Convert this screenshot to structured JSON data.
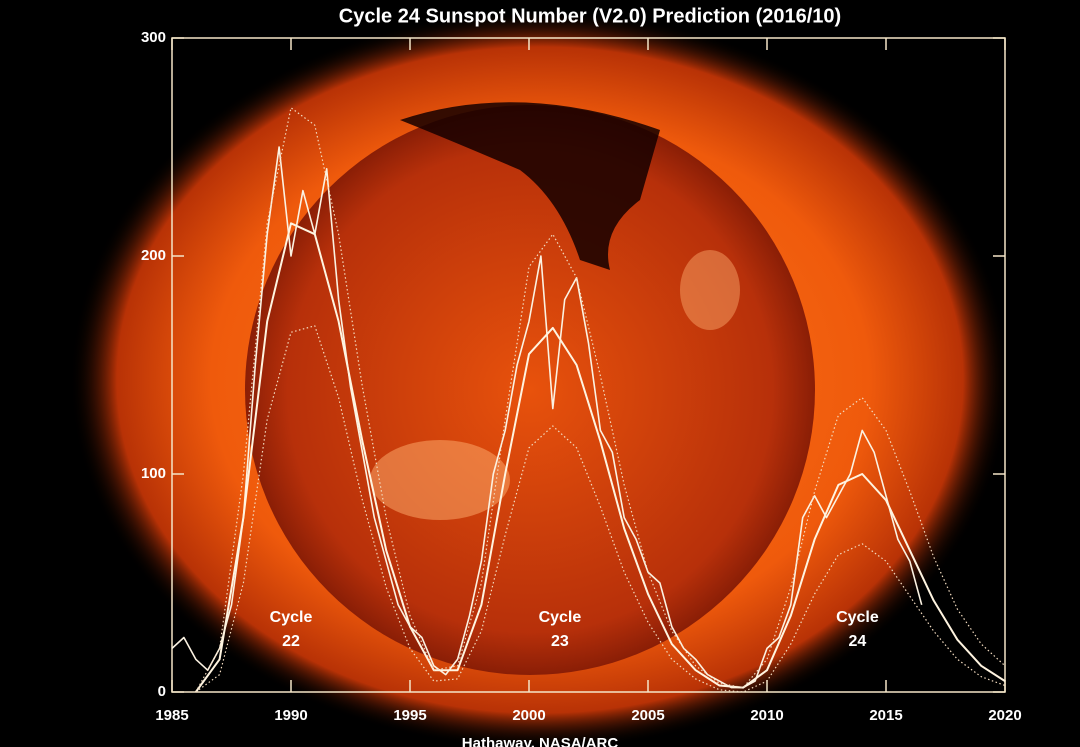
{
  "chart_data": {
    "type": "line",
    "title": "Cycle 24 Sunspot Number (V2.0) Prediction (2016/10)",
    "credit": "Hathaway, NASA/ARC",
    "annotations": [
      {
        "x": 1990,
        "lines": [
          "Cycle",
          "22"
        ]
      },
      {
        "x": 2001.3,
        "lines": [
          "Cycle",
          "23"
        ]
      },
      {
        "x": 2013.8,
        "lines": [
          "Cycle",
          "24"
        ]
      }
    ],
    "xlim": [
      1985,
      2020
    ],
    "xticks": [
      1985,
      1990,
      1995,
      2000,
      2005,
      2010,
      2015,
      2020
    ],
    "ylim": [
      0,
      300
    ],
    "yticks": [
      0,
      100,
      200,
      300
    ],
    "series": [
      {
        "color": "#fbf2e2",
        "style": "solid",
        "width": 1.6,
        "x": [
          1985,
          1985.5,
          1986,
          1986.5,
          1987,
          1987.5,
          1988,
          1988.5,
          1989,
          1989.5,
          1990,
          1990.5,
          1991,
          1991.5,
          1992,
          1992.5,
          1993,
          1993.5,
          1994,
          1994.5,
          1995,
          1995.5,
          1996,
          1996.5,
          1997,
          1997.5,
          1998,
          1998.5,
          1999,
          1999.5,
          2000,
          2000.5,
          2001,
          2001.5,
          2002,
          2002.5,
          2003,
          2003.5,
          2004,
          2004.5,
          2005,
          2005.5,
          2006,
          2006.5,
          2007,
          2007.5,
          2008,
          2008.5,
          2009,
          2009.5,
          2010,
          2010.5,
          2011,
          2011.5,
          2012,
          2012.5,
          2013,
          2013.5,
          2014,
          2014.5,
          2015,
          2015.5,
          2016,
          2016.5
        ],
        "values": [
          20,
          25,
          15,
          10,
          20,
          40,
          80,
          150,
          210,
          250,
          200,
          230,
          210,
          240,
          180,
          140,
          110,
          80,
          60,
          40,
          30,
          25,
          12,
          8,
          15,
          35,
          60,
          100,
          120,
          150,
          170,
          200,
          130,
          180,
          190,
          160,
          120,
          110,
          80,
          70,
          55,
          50,
          30,
          20,
          15,
          8,
          5,
          2,
          2,
          5,
          20,
          25,
          40,
          80,
          90,
          80,
          90,
          100,
          120,
          110,
          90,
          70,
          60,
          40
        ]
      },
      {
        "color": "#fff4e0",
        "style": "solid",
        "width": 2,
        "x": [
          1986,
          1987,
          1988,
          1989,
          1990,
          1991,
          1992,
          1993,
          1994,
          1995,
          1996,
          1997,
          1998,
          1999,
          2000,
          2001,
          2002,
          2003,
          2004,
          2005,
          2006,
          2007,
          2008,
          2009,
          2010,
          2011,
          2012,
          2013,
          2014,
          2015,
          2016,
          2017,
          2018,
          2019,
          2020
        ],
        "values": [
          0,
          15,
          80,
          170,
          215,
          210,
          170,
          115,
          65,
          30,
          10,
          10,
          40,
          100,
          155,
          167,
          150,
          115,
          75,
          45,
          22,
          10,
          3,
          2,
          10,
          35,
          70,
          95,
          100,
          88,
          65,
          42,
          24,
          12,
          5
        ]
      },
      {
        "color": "#f3dcc0",
        "style": "dotted",
        "width": 1.2,
        "x": [
          1986,
          1987,
          1988,
          1989,
          1990,
          1991,
          1992,
          1993,
          1994,
          1995,
          1996,
          1997,
          1998,
          1999,
          2000,
          2001,
          2002,
          2003,
          2004,
          2005,
          2006,
          2007,
          2008,
          2009,
          2010,
          2011,
          2012,
          2013,
          2014,
          2015,
          2016,
          2017,
          2018,
          2019,
          2020
        ],
        "values": [
          0,
          20,
          100,
          215,
          268,
          260,
          210,
          140,
          80,
          35,
          10,
          12,
          50,
          125,
          195,
          210,
          190,
          145,
          95,
          55,
          28,
          12,
          4,
          2,
          15,
          48,
          92,
          127,
          135,
          120,
          92,
          62,
          38,
          22,
          12
        ]
      },
      {
        "color": "#f3dcc0",
        "style": "dotted",
        "width": 1.2,
        "x": [
          1986,
          1987,
          1988,
          1989,
          1990,
          1991,
          1992,
          1993,
          1994,
          1995,
          1996,
          1997,
          1998,
          1999,
          2000,
          2001,
          2002,
          2003,
          2004,
          2005,
          2006,
          2007,
          2008,
          2009,
          2010,
          2011,
          2012,
          2013,
          2014,
          2015,
          2016,
          2017,
          2018,
          2019,
          2020
        ],
        "values": [
          0,
          8,
          50,
          125,
          165,
          168,
          135,
          88,
          48,
          20,
          5,
          6,
          28,
          72,
          112,
          122,
          112,
          85,
          55,
          32,
          15,
          6,
          1,
          0,
          5,
          22,
          45,
          63,
          68,
          60,
          44,
          28,
          15,
          7,
          3
        ]
      }
    ]
  }
}
